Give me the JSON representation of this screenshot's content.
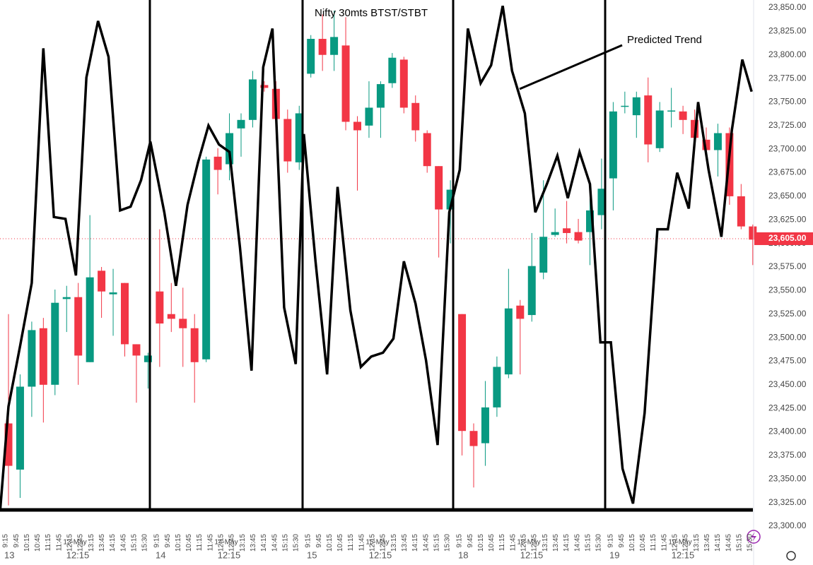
{
  "chart_data": {
    "type": "candlestick",
    "title": "Nifty 30mts BTST/STBT",
    "up_color": "#089981",
    "down_color": "#f23645",
    "ylim": [
      23300,
      23850
    ],
    "yticks": [
      {
        "value": 23300,
        "label": "23,300.00"
      },
      {
        "value": 23325,
        "label": "23,325.00"
      },
      {
        "value": 23350,
        "label": "23,350.00"
      },
      {
        "value": 23375,
        "label": "23,375.00"
      },
      {
        "value": 23400,
        "label": "23,400.00"
      },
      {
        "value": 23425,
        "label": "23,425.00"
      },
      {
        "value": 23450,
        "label": "23,450.00"
      },
      {
        "value": 23475,
        "label": "23,475.00"
      },
      {
        "value": 23500,
        "label": "23,500.00"
      },
      {
        "value": 23525,
        "label": "23,525.00"
      },
      {
        "value": 23550,
        "label": "23,550.00"
      },
      {
        "value": 23575,
        "label": "23,575.00"
      },
      {
        "value": 23600,
        "label": "23,600.00"
      },
      {
        "value": 23625,
        "label": "23,625.00"
      },
      {
        "value": 23650,
        "label": "23,650.00"
      },
      {
        "value": 23675,
        "label": "23,675.00"
      },
      {
        "value": 23700,
        "label": "23,700.00"
      },
      {
        "value": 23725,
        "label": "23,725.00"
      },
      {
        "value": 23750,
        "label": "23,750.00"
      },
      {
        "value": 23775,
        "label": "23,775.00"
      },
      {
        "value": 23800,
        "label": "23,800.00"
      },
      {
        "value": 23825,
        "label": "23,825.00"
      },
      {
        "value": 23850,
        "label": "23,850.00"
      }
    ],
    "last_price": {
      "value": 23605,
      "label": "23,605.00",
      "color": "#f23645"
    },
    "time_labels": [
      "9:15",
      "9:45",
      "10:15",
      "10:45",
      "11:15",
      "11:45",
      "12:15",
      "12:45",
      "13:15",
      "13:45",
      "14:15",
      "14:45",
      "15:15",
      "15:30"
    ],
    "days": [
      {
        "label": "13-May",
        "short": "13",
        "mid": "12:15"
      },
      {
        "label": "14-May",
        "short": "14",
        "mid": "12:15"
      },
      {
        "label": "15-May",
        "short": "15",
        "mid": "12:15"
      },
      {
        "label": "18-May",
        "short": "18",
        "mid": "12:15"
      },
      {
        "label": "19-May",
        "short": "19",
        "mid": "12:15"
      }
    ],
    "open": [
      23409,
      23360,
      23448,
      23510,
      23450,
      23541,
      23543,
      23474,
      23571,
      23546,
      23558,
      23493,
      23474,
      23549,
      23525,
      23520,
      23510,
      23477,
      23692,
      23684,
      23722,
      23731,
      23768,
      23764,
      23732,
      23686,
      23780,
      23817,
      23800,
      23810,
      23729,
      23725,
      23744,
      23770,
      23795,
      23749,
      23717,
      23682,
      23636,
      23525,
      23401,
      23388,
      23426,
      23461,
      23534,
      23524,
      23569,
      23609,
      23616,
      23612,
      23612,
      23630,
      23669,
      23745,
      23736,
      23757,
      23701,
      23740,
      23740,
      23731,
      23710,
      23699,
      23717,
      23650,
      23618
    ],
    "high": [
      23525,
      23461,
      23517,
      23521,
      23551,
      23555,
      23558,
      23630,
      23575,
      23573,
      23558,
      23493,
      23484,
      23615,
      23558,
      23553,
      23525,
      23692,
      23701,
      23738,
      23738,
      23783,
      23772,
      23772,
      23742,
      23746,
      23821,
      23843,
      23847,
      23840,
      23735,
      23772,
      23772,
      23802,
      23798,
      23757,
      23720,
      23682,
      23667,
      23525,
      23409,
      23454,
      23480,
      23573,
      23540,
      23611,
      23667,
      23637,
      23645,
      23626,
      23648,
      23690,
      23750,
      23761,
      23761,
      23776,
      23750,
      23765,
      23746,
      23742,
      23723,
      23727,
      23723,
      23663,
      23620
    ],
    "low": [
      23322,
      23330,
      23416,
      23410,
      23439,
      23506,
      23450,
      23474,
      23521,
      23502,
      23480,
      23431,
      23446,
      23469,
      23506,
      23469,
      23431,
      23474,
      23652,
      23667,
      23692,
      23723,
      23761,
      23723,
      23675,
      23678,
      23776,
      23783,
      23783,
      23720,
      23656,
      23712,
      23712,
      23765,
      23738,
      23708,
      23675,
      23585,
      23600,
      23375,
      23341,
      23364,
      23416,
      23457,
      23461,
      23517,
      23562,
      23607,
      23600,
      23600,
      23577,
      23615,
      23635,
      23738,
      23712,
      23686,
      23697,
      23723,
      23716,
      23708,
      23692,
      23671,
      23641,
      23615,
      23577
    ],
    "close": [
      23364,
      23448,
      23508,
      23450,
      23537,
      23543,
      23481,
      23564,
      23549,
      23548,
      23493,
      23481,
      23481,
      23515,
      23520,
      23510,
      23474,
      23689,
      23678,
      23717,
      23731,
      23774,
      23765,
      23732,
      23687,
      23738,
      23817,
      23800,
      23819,
      23729,
      23720,
      23744,
      23769,
      23797,
      23744,
      23720,
      23682,
      23636,
      23657,
      23401,
      23385,
      23426,
      23469,
      23531,
      23520,
      23576,
      23607,
      23612,
      23611,
      23603,
      23635,
      23658,
      23740,
      23746,
      23755,
      23705,
      23741,
      23741,
      23731,
      23712,
      23699,
      23717,
      23650,
      23618,
      23604
    ],
    "trend": {
      "name": "Predicted Trend",
      "color": "#000000",
      "x": [
        -0.7,
        0,
        1.0,
        2.0,
        3.0,
        3.9,
        4.9,
        5.8,
        6.7,
        7.7,
        8.6,
        9.6,
        10.5,
        11.4,
        12.2,
        13.4,
        14.4,
        15.4,
        16.3,
        17.2,
        18.1,
        19.0,
        19.9,
        20.9,
        21.9,
        22.7,
        23.7,
        24.7,
        25.4,
        26.4,
        27.4,
        28.3,
        29.4,
        30.3,
        31.2,
        32.2,
        33.1,
        34.0,
        35.0,
        35.9,
        36.9,
        37.9,
        38.8,
        39.5,
        40.6,
        41.5,
        42.5,
        43.3,
        44.4,
        45.3,
        46.3,
        47.2,
        48.1,
        49.1,
        50.0,
        50.9,
        51.8,
        52.8,
        53.7,
        54.7,
        55.8,
        56.7,
        57.5,
        58.5,
        59.3,
        60.2,
        61.3,
        62.2,
        63.1,
        63.9
      ],
      "values": [
        23319,
        23427,
        23491,
        23558,
        23807,
        23628,
        23626,
        23566,
        23776,
        23836,
        23798,
        23635,
        23639,
        23667,
        23708,
        23633,
        23555,
        23641,
        23686,
        23725,
        23705,
        23697,
        23596,
        23465,
        23787,
        23828,
        23532,
        23472,
        23716,
        23581,
        23461,
        23660,
        23529,
        23469,
        23480,
        23484,
        23499,
        23581,
        23536,
        23476,
        23386,
        23633,
        23678,
        23828,
        23770,
        23789,
        23852,
        23783,
        23738,
        23633,
        23663,
        23693,
        23648,
        23697,
        23663,
        23495,
        23495,
        23361,
        23324,
        23420,
        23615,
        23615,
        23675,
        23637,
        23750,
        23678,
        23607,
        23720,
        23795,
        23761
      ]
    }
  }
}
